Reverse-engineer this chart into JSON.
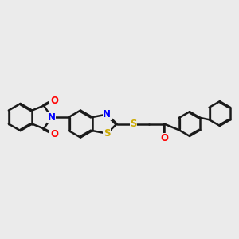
{
  "bg_color": "#ebebeb",
  "bond_color": "#1a1a1a",
  "bond_width": 1.8,
  "atom_colors": {
    "N": "#0000ff",
    "O": "#ff0000",
    "S": "#ccaa00",
    "C": "#1a1a1a"
  },
  "font_size": 8.5,
  "figsize": [
    3.0,
    3.0
  ],
  "dpi": 100
}
